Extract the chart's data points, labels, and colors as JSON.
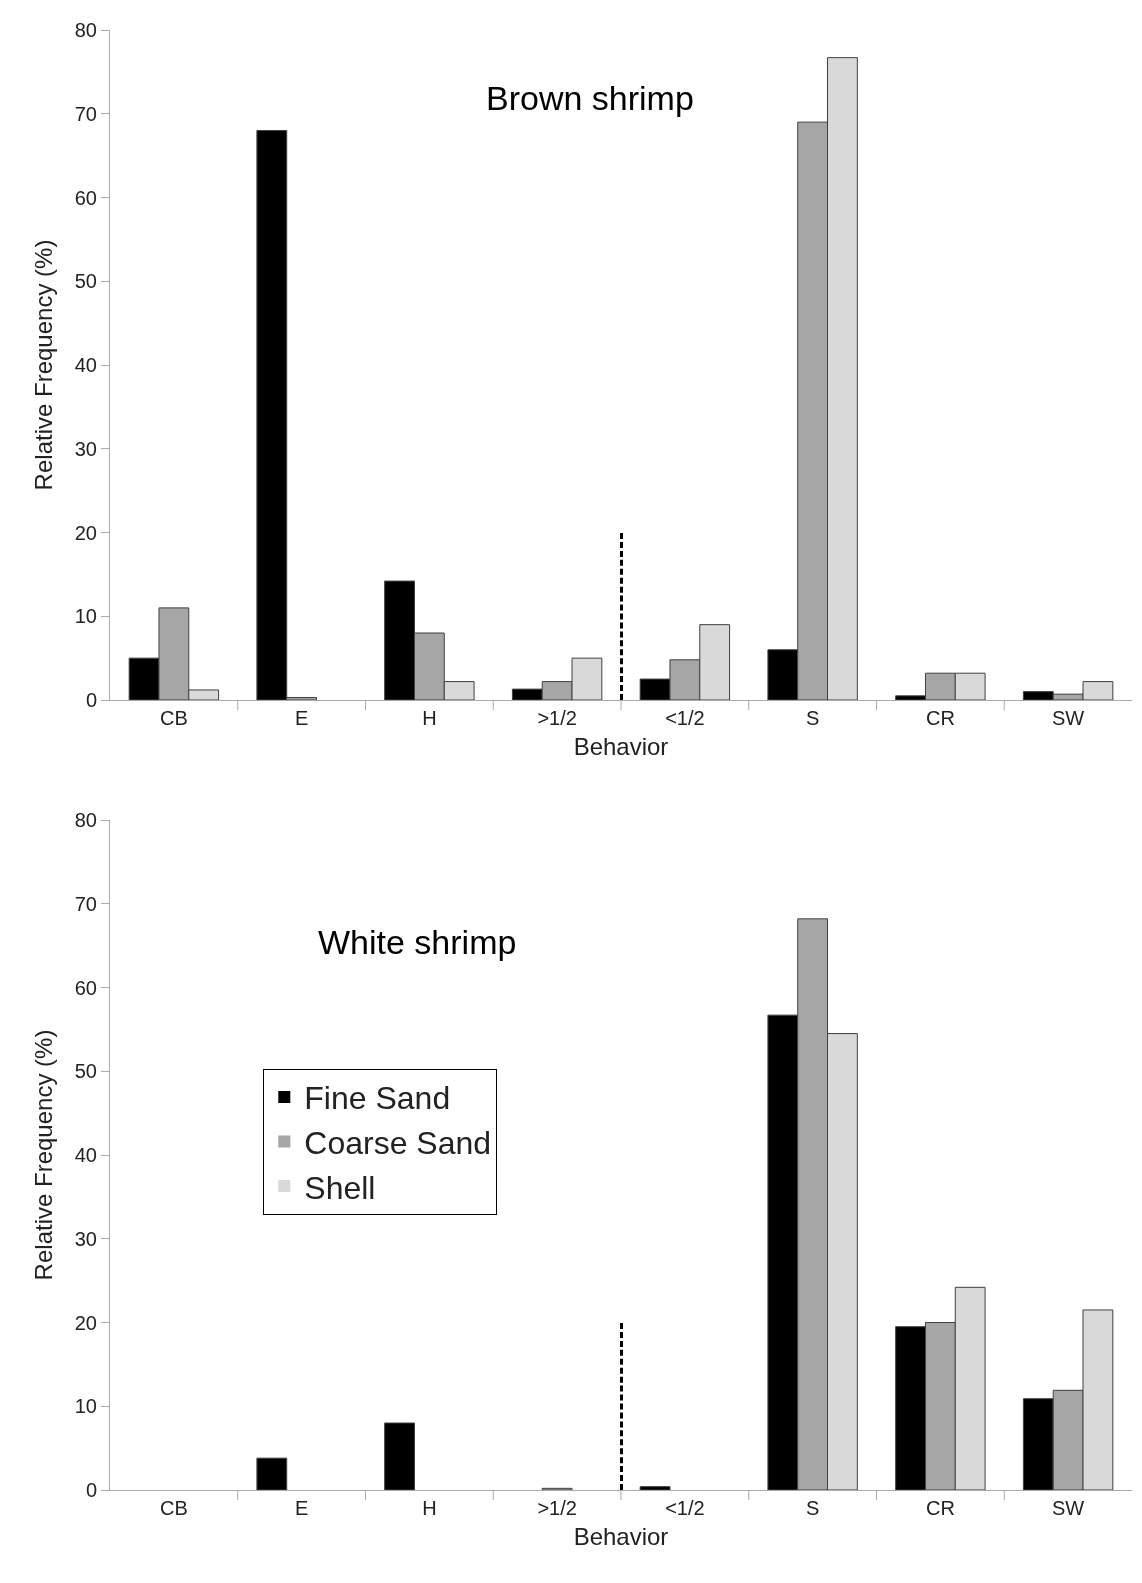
{
  "chart_data": [
    {
      "type": "bar",
      "title": "Brown shrimp",
      "xlabel": "Behavior",
      "ylabel": "Relative Frequency (%)",
      "categories": [
        "CB",
        "E",
        "H",
        ">1/2",
        "<1/2",
        "S",
        "CR",
        "SW"
      ],
      "series": [
        {
          "color": "#000000",
          "values": [
            5,
            68,
            14.2,
            1.3,
            2.5,
            6,
            0.5,
            1
          ]
        },
        {
          "color": "#a6a6a6",
          "values": [
            11,
            0.3,
            8,
            2.2,
            4.8,
            69,
            3.2,
            0.7
          ]
        },
        {
          "color": "#d9d9d9",
          "values": [
            1.2,
            0,
            2.2,
            5,
            9,
            76.7,
            3.2,
            2.2
          ]
        }
      ],
      "ylim": [
        0,
        80
      ],
      "yticks": [
        0,
        10,
        20,
        30,
        40,
        50,
        60,
        70,
        80
      ],
      "grid": false,
      "legend": false
    },
    {
      "type": "bar",
      "title": "White shrimp",
      "xlabel": "Behavior",
      "ylabel": "Relative Frequency (%)",
      "categories": [
        "CB",
        "E",
        "H",
        ">1/2",
        "<1/2",
        "S",
        "CR",
        "SW"
      ],
      "series": [
        {
          "name": "Fine Sand",
          "color": "#000000",
          "values": [
            0,
            3.8,
            8,
            0,
            0.4,
            56.7,
            19.5,
            10.9
          ]
        },
        {
          "name": "Coarse Sand",
          "color": "#a6a6a6",
          "values": [
            0,
            0,
            0,
            0.2,
            0,
            68.2,
            20,
            11.9
          ]
        },
        {
          "name": "Shell",
          "color": "#d9d9d9",
          "values": [
            0,
            0,
            0,
            0,
            0,
            54.5,
            24.2,
            21.5
          ]
        }
      ],
      "ylim": [
        0,
        80
      ],
      "yticks": [
        0,
        10,
        20,
        30,
        40,
        50,
        60,
        70,
        80
      ],
      "grid": false,
      "legend": "left"
    }
  ]
}
